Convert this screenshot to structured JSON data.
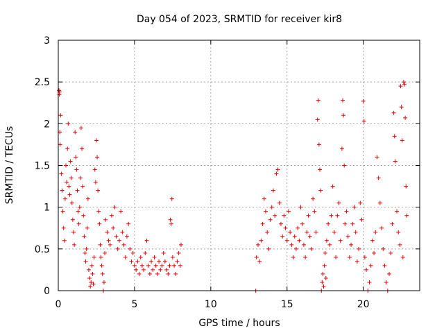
{
  "chart_data": {
    "type": "scatter",
    "title": "Day 054 of 2023, SRMTID for receiver kir8",
    "xlabel": "GPS time / hours",
    "ylabel": "SRMTID / TECUs",
    "xlim": [
      0,
      23.7
    ],
    "ylim": [
      0,
      3
    ],
    "xticks": [
      0,
      5,
      10,
      15,
      20
    ],
    "xtick_labels": [
      "0",
      "5",
      "10",
      "15",
      "20"
    ],
    "yticks": [
      0,
      0.5,
      1,
      1.5,
      2,
      2.5,
      3
    ],
    "ytick_labels": [
      "0",
      "0.5",
      "1",
      "1.5",
      "2",
      "2.5",
      "3"
    ],
    "grid": true,
    "marker": "+",
    "color": "#e00000",
    "series": [
      {
        "name": "SRMTID",
        "points": [
          [
            0.05,
            2.4
          ],
          [
            0.07,
            2.35
          ],
          [
            0.08,
            2.38
          ],
          [
            0.1,
            1.9
          ],
          [
            0.12,
            1.75
          ],
          [
            0.15,
            2.1
          ],
          [
            0.2,
            1.4
          ],
          [
            0.25,
            1.2
          ],
          [
            0.3,
            0.95
          ],
          [
            0.35,
            0.75
          ],
          [
            0.4,
            0.6
          ],
          [
            0.45,
            1.1
          ],
          [
            0.5,
            1.5
          ],
          [
            0.55,
            1.3
          ],
          [
            0.6,
            1.7
          ],
          [
            0.65,
            2.0
          ],
          [
            0.7,
            1.25
          ],
          [
            0.75,
            1.15
          ],
          [
            0.8,
            1.55
          ],
          [
            0.85,
            1.35
          ],
          [
            0.9,
            1.05
          ],
          [
            0.95,
            0.85
          ],
          [
            1.0,
            0.7
          ],
          [
            1.05,
            0.55
          ],
          [
            1.1,
            1.9
          ],
          [
            1.15,
            1.6
          ],
          [
            1.2,
            1.45
          ],
          [
            1.25,
            1.2
          ],
          [
            1.3,
            0.95
          ],
          [
            1.35,
            0.8
          ],
          [
            1.4,
            1.0
          ],
          [
            1.45,
            1.35
          ],
          [
            1.5,
            1.95
          ],
          [
            1.55,
            1.7
          ],
          [
            1.6,
            1.25
          ],
          [
            1.65,
            0.9
          ],
          [
            1.7,
            0.65
          ],
          [
            1.75,
            0.45
          ],
          [
            1.8,
            0.35
          ],
          [
            1.85,
            0.5
          ],
          [
            1.9,
            0.75
          ],
          [
            1.95,
            1.1
          ],
          [
            2.0,
            0.25
          ],
          [
            2.05,
            0.15
          ],
          [
            2.1,
            0.05
          ],
          [
            2.15,
            0.1
          ],
          [
            2.2,
            0.3
          ],
          [
            2.25,
            0.2
          ],
          [
            2.3,
            0.08
          ],
          [
            2.35,
            0.4
          ],
          [
            2.4,
            1.45
          ],
          [
            2.45,
            1.3
          ],
          [
            2.5,
            1.8
          ],
          [
            2.55,
            1.6
          ],
          [
            2.6,
            1.2
          ],
          [
            2.65,
            0.95
          ],
          [
            2.7,
            0.8
          ],
          [
            2.75,
            0.55
          ],
          [
            2.8,
            0.4
          ],
          [
            2.85,
            0.3
          ],
          [
            2.9,
            0.2
          ],
          [
            2.95,
            0.0
          ],
          [
            3.0,
            0.1
          ],
          [
            3.05,
            0.45
          ],
          [
            3.1,
            0.85
          ],
          [
            3.2,
            0.7
          ],
          [
            3.3,
            0.6
          ],
          [
            3.4,
            0.55
          ],
          [
            3.5,
            0.9
          ],
          [
            3.6,
            0.75
          ],
          [
            3.7,
            1.0
          ],
          [
            3.8,
            0.65
          ],
          [
            3.9,
            0.5
          ],
          [
            4.0,
            0.6
          ],
          [
            4.1,
            0.95
          ],
          [
            4.2,
            0.7
          ],
          [
            4.3,
            0.55
          ],
          [
            4.4,
            0.4
          ],
          [
            4.5,
            0.65
          ],
          [
            4.6,
            0.8
          ],
          [
            4.7,
            0.5
          ],
          [
            4.8,
            0.35
          ],
          [
            4.9,
            0.45
          ],
          [
            5.0,
            0.3
          ],
          [
            5.1,
            0.25
          ],
          [
            5.2,
            0.35
          ],
          [
            5.3,
            0.2
          ],
          [
            5.4,
            0.4
          ],
          [
            5.5,
            0.3
          ],
          [
            5.6,
            0.25
          ],
          [
            5.7,
            0.45
          ],
          [
            5.8,
            0.6
          ],
          [
            5.9,
            0.3
          ],
          [
            6.0,
            0.2
          ],
          [
            6.1,
            0.35
          ],
          [
            6.2,
            0.25
          ],
          [
            6.3,
            0.4
          ],
          [
            6.4,
            0.3
          ],
          [
            6.5,
            0.2
          ],
          [
            6.6,
            0.35
          ],
          [
            6.7,
            0.25
          ],
          [
            6.8,
            0.3
          ],
          [
            6.9,
            0.45
          ],
          [
            7.0,
            0.35
          ],
          [
            7.1,
            0.25
          ],
          [
            7.2,
            0.2
          ],
          [
            7.3,
            0.3
          ],
          [
            7.35,
            0.85
          ],
          [
            7.4,
            0.8
          ],
          [
            7.45,
            1.1
          ],
          [
            7.5,
            0.4
          ],
          [
            7.6,
            0.3
          ],
          [
            7.7,
            0.2
          ],
          [
            7.8,
            0.35
          ],
          [
            7.9,
            0.45
          ],
          [
            8.0,
            0.3
          ],
          [
            8.05,
            0.55
          ],
          [
            12.95,
            0.0
          ],
          [
            13.0,
            0.4
          ],
          [
            13.1,
            0.55
          ],
          [
            13.2,
            0.35
          ],
          [
            13.3,
            0.6
          ],
          [
            13.4,
            0.8
          ],
          [
            13.5,
            1.1
          ],
          [
            13.6,
            0.95
          ],
          [
            13.7,
            0.7
          ],
          [
            13.8,
            0.5
          ],
          [
            13.9,
            0.85
          ],
          [
            14.0,
            1.0
          ],
          [
            14.1,
            1.2
          ],
          [
            14.2,
            0.9
          ],
          [
            14.3,
            1.4
          ],
          [
            14.4,
            1.45
          ],
          [
            14.5,
            1.05
          ],
          [
            14.6,
            0.8
          ],
          [
            14.7,
            0.65
          ],
          [
            14.8,
            0.9
          ],
          [
            14.9,
            0.75
          ],
          [
            15.0,
            0.6
          ],
          [
            15.1,
            0.95
          ],
          [
            15.2,
            0.7
          ],
          [
            15.3,
            0.55
          ],
          [
            15.4,
            0.4
          ],
          [
            15.5,
            0.65
          ],
          [
            15.6,
            0.5
          ],
          [
            15.7,
            0.75
          ],
          [
            15.8,
            0.6
          ],
          [
            15.9,
            1.0
          ],
          [
            16.0,
            0.8
          ],
          [
            16.1,
            0.55
          ],
          [
            16.2,
            0.4
          ],
          [
            16.3,
            0.7
          ],
          [
            16.4,
            0.9
          ],
          [
            16.5,
            0.65
          ],
          [
            16.6,
            0.5
          ],
          [
            16.7,
            1.1
          ],
          [
            16.8,
            0.95
          ],
          [
            16.9,
            0.7
          ],
          [
            17.0,
            2.05
          ],
          [
            17.05,
            2.28
          ],
          [
            17.1,
            1.75
          ],
          [
            17.15,
            1.45
          ],
          [
            17.2,
            1.2
          ],
          [
            17.25,
            0.0
          ],
          [
            17.3,
            0.1
          ],
          [
            17.35,
            0.2
          ],
          [
            17.4,
            0.05
          ],
          [
            17.45,
            0.3
          ],
          [
            17.5,
            0.45
          ],
          [
            17.55,
            0.15
          ],
          [
            17.6,
            0.6
          ],
          [
            17.7,
            0.8
          ],
          [
            17.8,
            0.55
          ],
          [
            17.9,
            0.9
          ],
          [
            18.0,
            1.25
          ],
          [
            18.1,
            0.7
          ],
          [
            18.2,
            0.4
          ],
          [
            18.3,
            0.9
          ],
          [
            18.4,
            1.05
          ],
          [
            18.5,
            0.6
          ],
          [
            18.6,
            1.7
          ],
          [
            18.65,
            2.28
          ],
          [
            18.7,
            2.1
          ],
          [
            18.75,
            1.5
          ],
          [
            18.8,
            0.8
          ],
          [
            18.9,
            0.95
          ],
          [
            19.0,
            0.65
          ],
          [
            19.1,
            0.4
          ],
          [
            19.2,
            0.55
          ],
          [
            19.3,
            0.8
          ],
          [
            19.4,
            1.0
          ],
          [
            19.5,
            0.7
          ],
          [
            19.6,
            0.35
          ],
          [
            19.7,
            0.5
          ],
          [
            19.8,
            1.05
          ],
          [
            19.9,
            0.85
          ],
          [
            20.0,
            2.27
          ],
          [
            20.05,
            2.03
          ],
          [
            20.1,
            0.4
          ],
          [
            20.2,
            0.25
          ],
          [
            20.3,
            0.0
          ],
          [
            20.4,
            0.1
          ],
          [
            20.5,
            0.3
          ],
          [
            20.6,
            0.6
          ],
          [
            20.7,
            0.45
          ],
          [
            20.8,
            0.7
          ],
          [
            20.9,
            1.6
          ],
          [
            21.0,
            1.35
          ],
          [
            21.1,
            1.05
          ],
          [
            21.2,
            0.75
          ],
          [
            21.3,
            0.5
          ],
          [
            21.4,
            0.3
          ],
          [
            21.5,
            0.1
          ],
          [
            21.6,
            0.0
          ],
          [
            21.7,
            0.2
          ],
          [
            21.8,
            0.45
          ],
          [
            21.9,
            0.8
          ],
          [
            22.0,
            2.13
          ],
          [
            22.05,
            1.85
          ],
          [
            22.1,
            1.55
          ],
          [
            22.2,
            0.95
          ],
          [
            22.3,
            0.7
          ],
          [
            22.4,
            0.55
          ],
          [
            22.45,
            2.45
          ],
          [
            22.5,
            2.2
          ],
          [
            22.55,
            1.8
          ],
          [
            22.6,
            0.4
          ],
          [
            22.65,
            2.5
          ],
          [
            22.7,
            2.47
          ],
          [
            22.75,
            2.07
          ],
          [
            22.8,
            1.25
          ],
          [
            22.85,
            0.9
          ]
        ]
      }
    ]
  }
}
